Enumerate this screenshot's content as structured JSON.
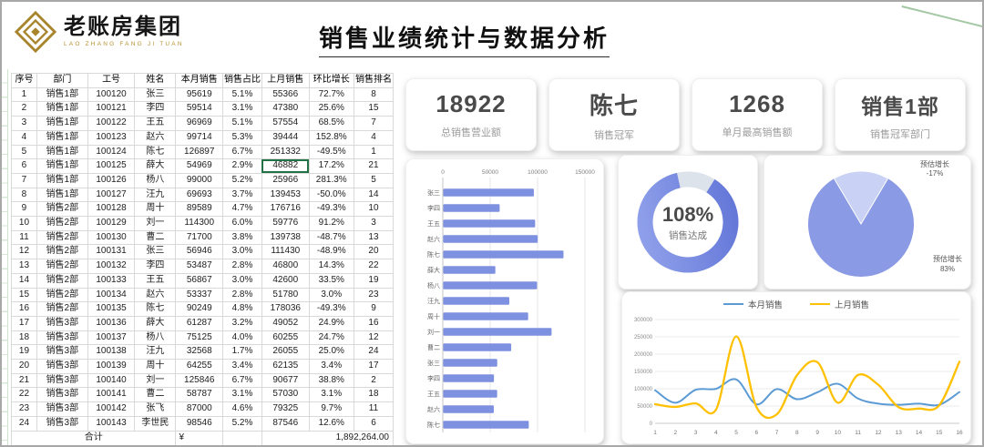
{
  "header": {
    "logo_text": "老账房集团",
    "logo_tagline": "LAO ZHANG FANG JI TUAN",
    "title": "销售业绩统计与数据分析"
  },
  "table": {
    "columns": [
      "序号",
      "部门",
      "工号",
      "姓名",
      "本月销售",
      "销售占比",
      "上月销售",
      "环比增长",
      "销售排名"
    ],
    "rows": [
      [
        "1",
        "销售1部",
        "100120",
        "张三",
        "95619",
        "5.1%",
        "55366",
        "72.7%",
        "8"
      ],
      [
        "2",
        "销售1部",
        "100121",
        "李四",
        "59514",
        "3.1%",
        "47380",
        "25.6%",
        "15"
      ],
      [
        "3",
        "销售1部",
        "100122",
        "王五",
        "96969",
        "5.1%",
        "57554",
        "68.5%",
        "7"
      ],
      [
        "4",
        "销售1部",
        "100123",
        "赵六",
        "99714",
        "5.3%",
        "39444",
        "152.8%",
        "4"
      ],
      [
        "5",
        "销售1部",
        "100124",
        "陈七",
        "126897",
        "6.7%",
        "251332",
        "-49.5%",
        "1"
      ],
      [
        "6",
        "销售1部",
        "100125",
        "薛大",
        "54969",
        "2.9%",
        "46882",
        "17.2%",
        "21"
      ],
      [
        "7",
        "销售1部",
        "100126",
        "杨八",
        "99000",
        "5.2%",
        "25966",
        "281.3%",
        "5"
      ],
      [
        "8",
        "销售1部",
        "100127",
        "汪九",
        "69693",
        "3.7%",
        "139453",
        "-50.0%",
        "14"
      ],
      [
        "9",
        "销售2部",
        "100128",
        "周十",
        "89589",
        "4.7%",
        "176716",
        "-49.3%",
        "10"
      ],
      [
        "10",
        "销售2部",
        "100129",
        "刘一",
        "114300",
        "6.0%",
        "59776",
        "91.2%",
        "3"
      ],
      [
        "11",
        "销售2部",
        "100130",
        "曹二",
        "71700",
        "3.8%",
        "139738",
        "-48.7%",
        "13"
      ],
      [
        "12",
        "销售2部",
        "100131",
        "张三",
        "56946",
        "3.0%",
        "111430",
        "-48.9%",
        "20"
      ],
      [
        "13",
        "销售2部",
        "100132",
        "李四",
        "53487",
        "2.8%",
        "46800",
        "14.3%",
        "22"
      ],
      [
        "14",
        "销售2部",
        "100133",
        "王五",
        "56867",
        "3.0%",
        "42600",
        "33.5%",
        "19"
      ],
      [
        "15",
        "销售2部",
        "100134",
        "赵六",
        "53337",
        "2.8%",
        "51780",
        "3.0%",
        "23"
      ],
      [
        "16",
        "销售2部",
        "100135",
        "陈七",
        "90249",
        "4.8%",
        "178036",
        "-49.3%",
        "9"
      ],
      [
        "17",
        "销售3部",
        "100136",
        "薛大",
        "61287",
        "3.2%",
        "49052",
        "24.9%",
        "16"
      ],
      [
        "18",
        "销售3部",
        "100137",
        "杨八",
        "75125",
        "4.0%",
        "60255",
        "24.7%",
        "12"
      ],
      [
        "19",
        "销售3部",
        "100138",
        "汪九",
        "32568",
        "1.7%",
        "26055",
        "25.0%",
        "24"
      ],
      [
        "20",
        "销售3部",
        "100139",
        "周十",
        "64255",
        "3.4%",
        "62135",
        "3.4%",
        "17"
      ],
      [
        "21",
        "销售3部",
        "100140",
        "刘一",
        "125846",
        "6.7%",
        "90677",
        "38.8%",
        "2"
      ],
      [
        "22",
        "销售3部",
        "100141",
        "曹二",
        "58787",
        "3.1%",
        "57030",
        "3.1%",
        "18"
      ],
      [
        "23",
        "销售3部",
        "100142",
        "张飞",
        "87000",
        "4.6%",
        "79325",
        "9.7%",
        "11"
      ],
      [
        "24",
        "销售3部",
        "100143",
        "李世民",
        "98546",
        "5.2%",
        "87546",
        "12.6%",
        "6"
      ]
    ],
    "highlight": {
      "row_index": 5,
      "col_index": 6,
      "value": "46882",
      "border_color": "#217346"
    },
    "total_label": "合计",
    "currency_symbol": "¥",
    "total_value": "1,892,264.00"
  },
  "kpis": [
    {
      "value": "18922",
      "label": "总销售营业额"
    },
    {
      "value": "陈七",
      "label": "销售冠军"
    },
    {
      "value": "1268",
      "label": "单月最高销售额"
    },
    {
      "value": "销售1部",
      "label": "销售冠军部门"
    }
  ],
  "chart_data": [
    {
      "type": "bar",
      "orientation": "horizontal",
      "categories": [
        "张三",
        "李四",
        "王五",
        "赵六",
        "陈七",
        "薛大",
        "杨八",
        "汪九",
        "周十",
        "刘一",
        "曹二",
        "张三",
        "李四",
        "王五",
        "赵六",
        "陈七"
      ],
      "values": [
        95619,
        59514,
        96969,
        99714,
        126897,
        54969,
        99000,
        69693,
        89589,
        114300,
        71700,
        56946,
        53487,
        56867,
        53337,
        90249
      ],
      "xlim": [
        0,
        150000
      ],
      "xticks": [
        0,
        50000,
        100000,
        150000
      ],
      "bar_color": "#7e90e0",
      "grid": true
    },
    {
      "type": "donut",
      "value_label": "108%",
      "caption": "销售达成",
      "fraction": 0.875,
      "ring_color_start": "#94a4ec",
      "ring_color_end": "#5f73d6",
      "rest_color": "#dde3ea"
    },
    {
      "type": "pie",
      "slices": [
        {
          "label": "预估增长",
          "pct_label": "-17%",
          "share": 17,
          "color": "#c9d2f4"
        },
        {
          "label": "预估增长",
          "pct_label": "83%",
          "share": 83,
          "color": "#8b9ae4"
        }
      ]
    },
    {
      "type": "line",
      "x": [
        1,
        2,
        3,
        4,
        5,
        6,
        7,
        8,
        9,
        10,
        11,
        12,
        13,
        14,
        15,
        16
      ],
      "series": [
        {
          "name": "本月销售",
          "color": "#5b9bd5",
          "values": [
            95619,
            59514,
            96969,
            99714,
            126897,
            54969,
            99000,
            69693,
            89589,
            114300,
            71700,
            56946,
            53487,
            56867,
            53337,
            90249
          ]
        },
        {
          "name": "上月销售",
          "color": "#ffc000",
          "values": [
            55366,
            47380,
            57554,
            39444,
            251332,
            46882,
            25966,
            139453,
            176716,
            59776,
            139738,
            111430,
            46800,
            42600,
            51780,
            178036
          ]
        }
      ],
      "ylim": [
        0,
        300000
      ],
      "ytick_step": 50000,
      "legend_position": "top",
      "grid": true
    }
  ]
}
